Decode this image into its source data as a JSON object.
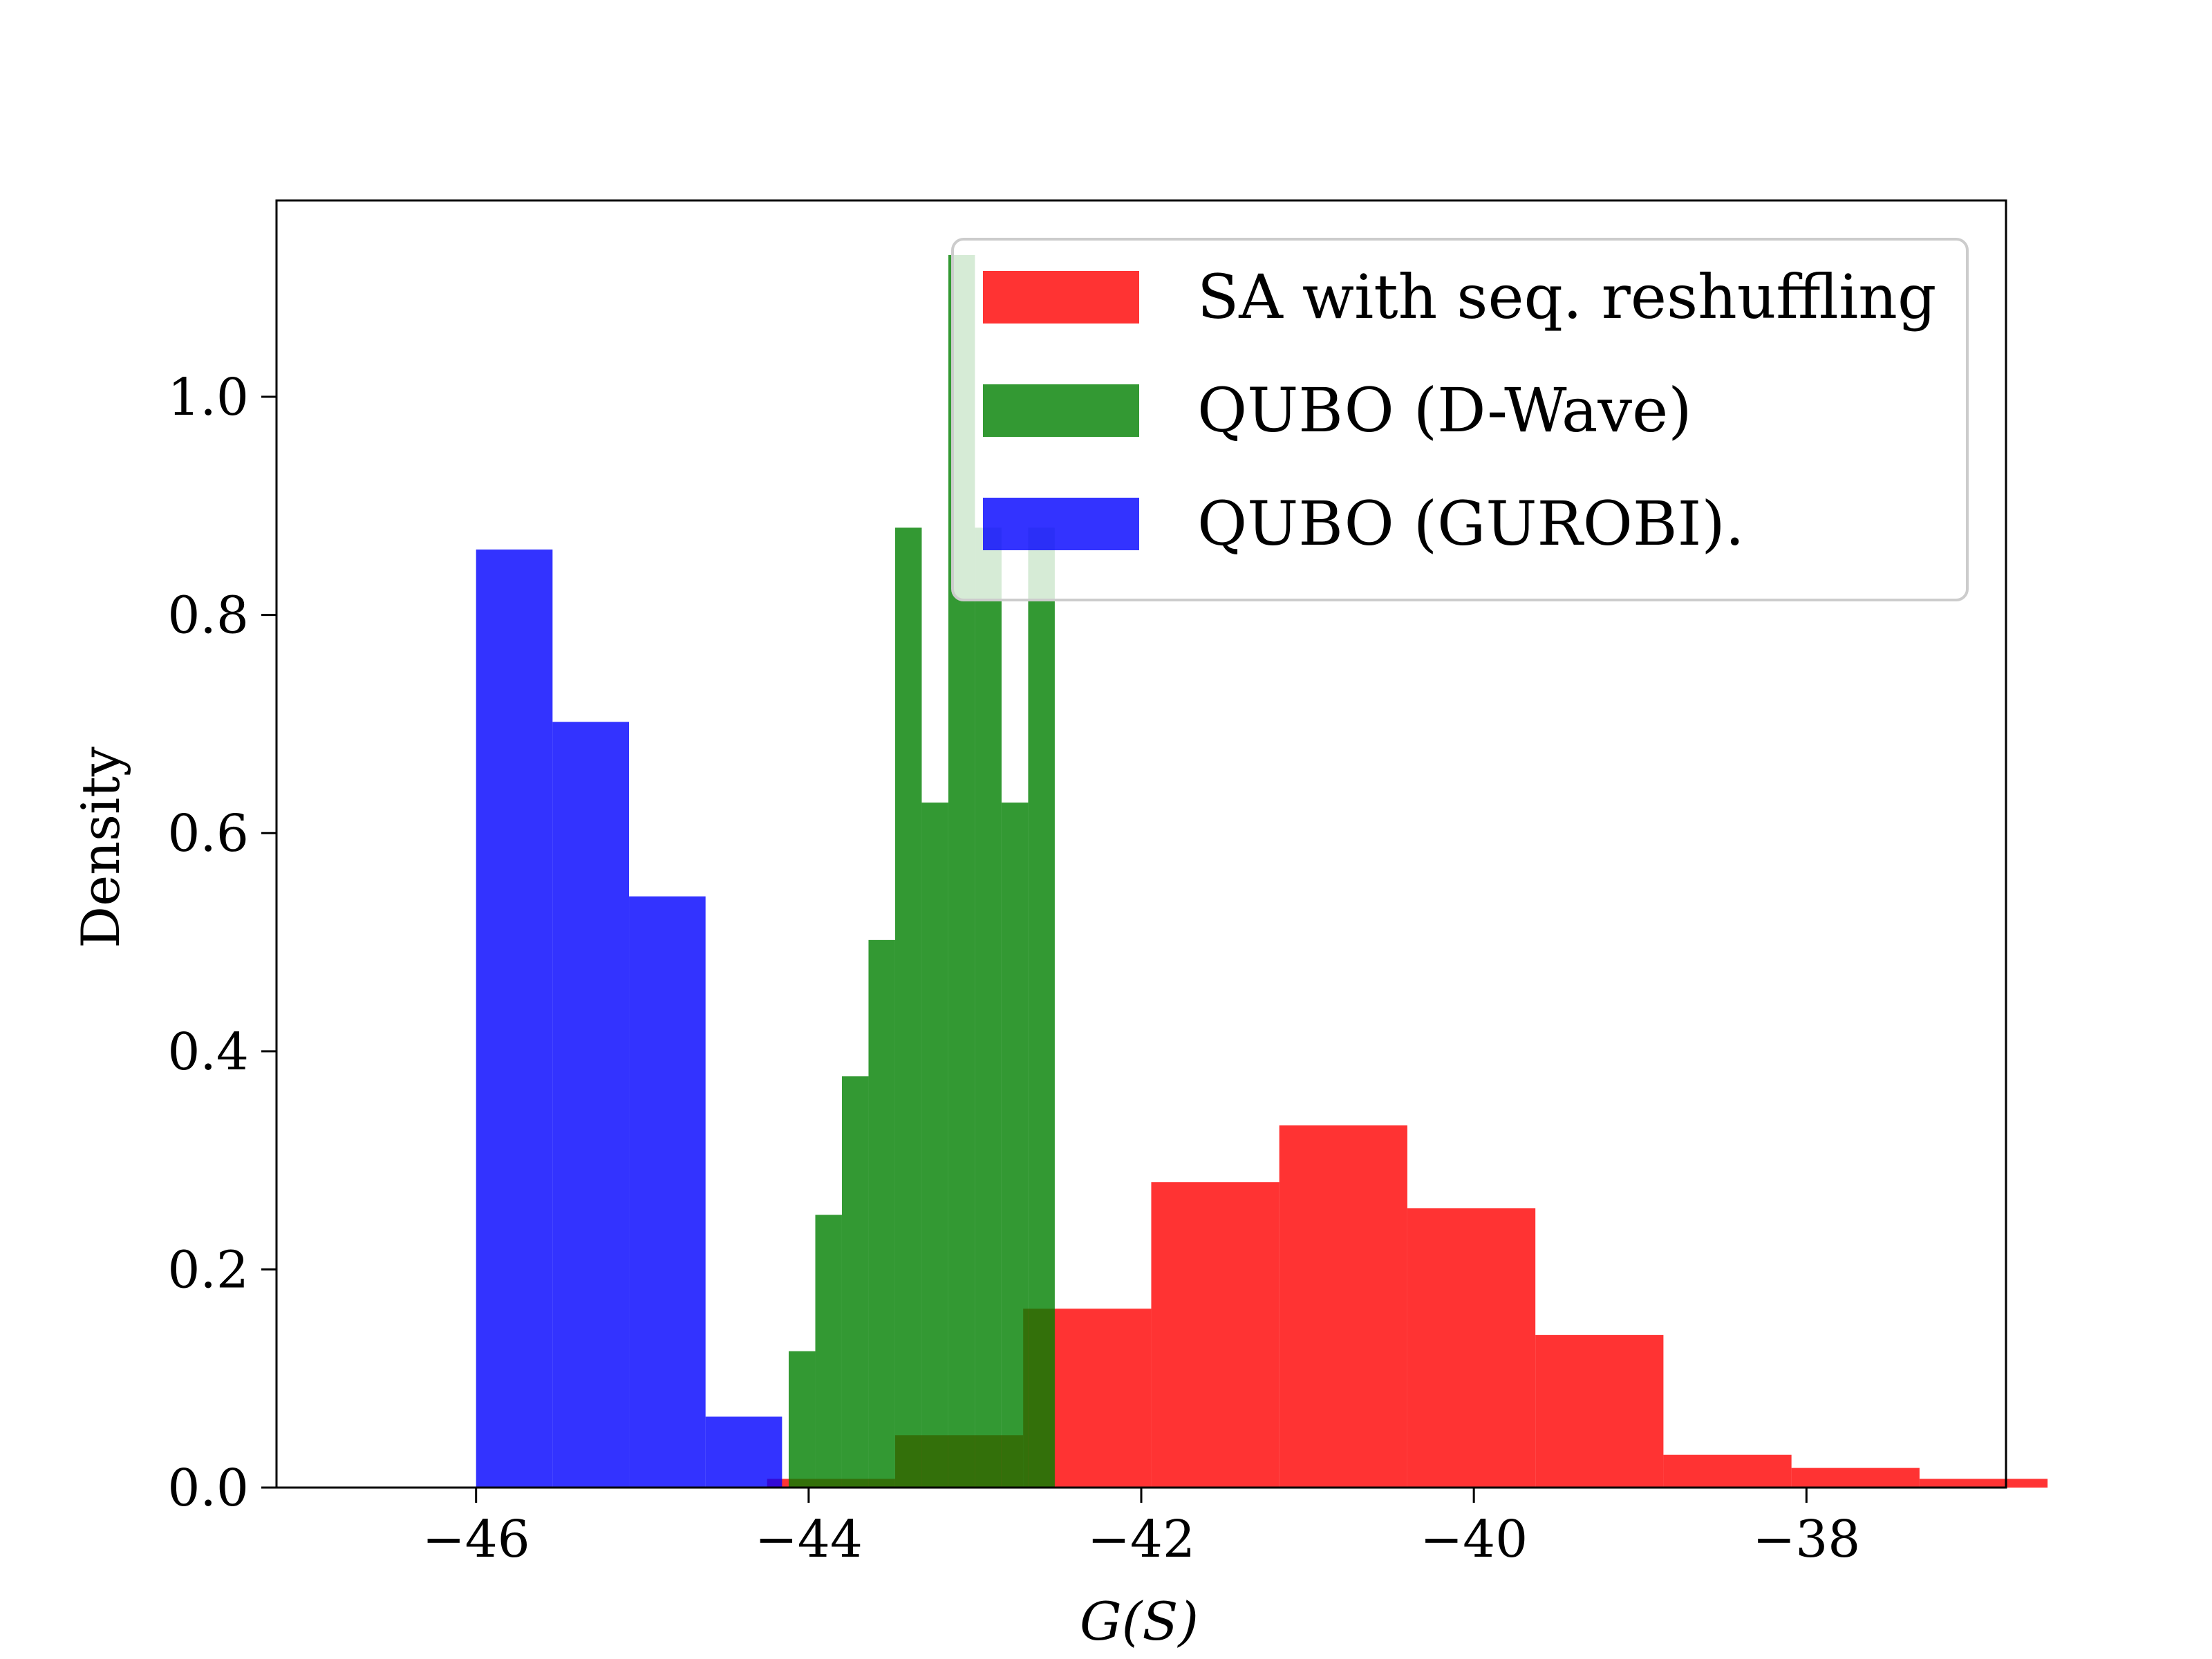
{
  "chart_data": {
    "type": "histogram",
    "title": "",
    "xlabel": "G(S)",
    "ylabel": "Density",
    "xlim": [
      -47.2,
      -36.8
    ],
    "ylim": [
      0,
      1.18
    ],
    "xticks": [
      -46,
      -44,
      -42,
      -40,
      -38
    ],
    "xtick_labels": [
      "−46",
      "−44",
      "−42",
      "−40",
      "−38"
    ],
    "yticks": [
      0.0,
      0.2,
      0.4,
      0.6,
      0.8,
      1.0
    ],
    "ytick_labels": [
      "0.0",
      "0.2",
      "0.4",
      "0.6",
      "0.8",
      "1.0"
    ],
    "grid": false,
    "legend": {
      "position": "top-right"
    },
    "alpha": 0.8,
    "series": [
      {
        "name": "SA with seq. reshuffling",
        "color": "#ff0000",
        "bins": [
          {
            "x0": -44.25,
            "x1": -43.48,
            "density": 0.008
          },
          {
            "x0": -43.48,
            "x1": -42.71,
            "density": 0.048
          },
          {
            "x0": -42.71,
            "x1": -41.94,
            "density": 0.164
          },
          {
            "x0": -41.94,
            "x1": -41.17,
            "density": 0.28
          },
          {
            "x0": -41.17,
            "x1": -40.4,
            "density": 0.332
          },
          {
            "x0": -40.4,
            "x1": -39.63,
            "density": 0.256
          },
          {
            "x0": -39.63,
            "x1": -38.86,
            "density": 0.14
          },
          {
            "x0": -38.86,
            "x1": -38.09,
            "density": 0.03
          },
          {
            "x0": -38.09,
            "x1": -37.32,
            "density": 0.018
          },
          {
            "x0": -37.32,
            "x1": -36.55,
            "density": 0.008
          }
        ]
      },
      {
        "name": "QUBO (D-Wave)",
        "color": "#008000",
        "bins": [
          {
            "x0": -44.12,
            "x1": -43.96,
            "density": 0.125
          },
          {
            "x0": -43.96,
            "x1": -43.8,
            "density": 0.25
          },
          {
            "x0": -43.8,
            "x1": -43.64,
            "density": 0.377
          },
          {
            "x0": -43.64,
            "x1": -43.48,
            "density": 0.502
          },
          {
            "x0": -43.48,
            "x1": -43.32,
            "density": 0.88
          },
          {
            "x0": -43.32,
            "x1": -43.16,
            "density": 0.628
          },
          {
            "x0": -43.16,
            "x1": -43.0,
            "density": 1.13
          },
          {
            "x0": -43.0,
            "x1": -42.84,
            "density": 0.88
          },
          {
            "x0": -42.84,
            "x1": -42.68,
            "density": 0.628
          },
          {
            "x0": -42.68,
            "x1": -42.52,
            "density": 0.88
          }
        ]
      },
      {
        "name": "QUBO (GUROBI).",
        "color": "#0000ff",
        "bins": [
          {
            "x0": -46.0,
            "x1": -45.54,
            "density": 0.86
          },
          {
            "x0": -45.54,
            "x1": -45.08,
            "density": 0.702
          },
          {
            "x0": -45.08,
            "x1": -44.62,
            "density": 0.542
          },
          {
            "x0": -44.62,
            "x1": -44.16,
            "density": 0.065
          }
        ]
      }
    ]
  }
}
